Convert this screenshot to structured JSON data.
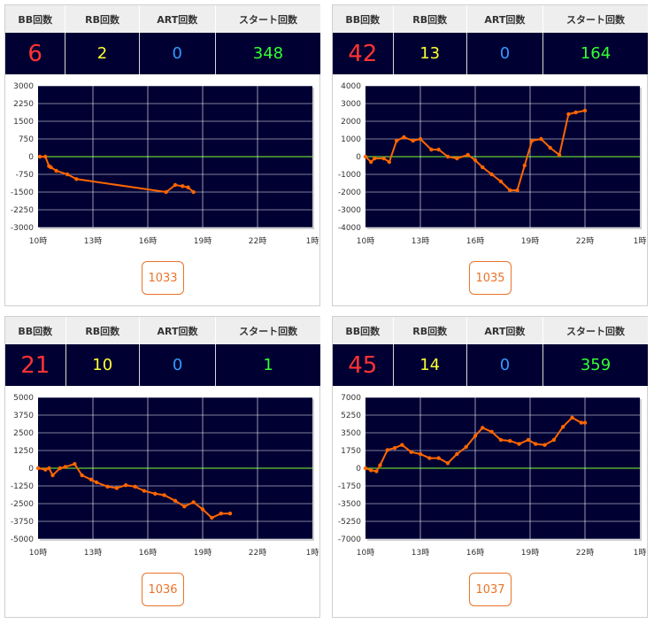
{
  "headers": {
    "bb": "BB回数",
    "rb": "RB回数",
    "art": "ART回数",
    "start": "スタート回数"
  },
  "colors": {
    "bb": "#ff3333",
    "rb": "#ffff33",
    "art": "#3399ff",
    "start": "#33ff33",
    "plot_bg": "#000033",
    "line": "#ff6600",
    "zero_line": "#66cc33",
    "button": "#e8742a"
  },
  "panels": [
    {
      "machine": "1033",
      "bb": "6",
      "rb": "2",
      "art": "0",
      "start": "348",
      "chart_data": {
        "type": "line",
        "x_ticks": [
          "10時",
          "13時",
          "16時",
          "19時",
          "22時",
          "1時"
        ],
        "xlim": [
          10,
          25
        ],
        "ylim": [
          -3000,
          3000
        ],
        "y_ticks": [
          "3000",
          "2250",
          "1500",
          "750",
          "0",
          "-750",
          "-1500",
          "-2250",
          "-3000"
        ],
        "series": [
          {
            "x": [
              10.1,
              10.4,
              10.6,
              10.7,
              11.0,
              11.6,
              12.1,
              17.0,
              17.5,
              17.9,
              18.2,
              18.5
            ],
            "y": [
              0,
              0,
              -400,
              -450,
              -600,
              -750,
              -950,
              -1500,
              -1200,
              -1250,
              -1300,
              -1500
            ]
          }
        ]
      }
    },
    {
      "machine": "1035",
      "bb": "42",
      "rb": "13",
      "art": "0",
      "start": "164",
      "chart_data": {
        "type": "line",
        "x_ticks": [
          "10時",
          "13時",
          "16時",
          "19時",
          "22時",
          "1時"
        ],
        "xlim": [
          10,
          25
        ],
        "ylim": [
          -4000,
          4000
        ],
        "y_ticks": [
          "4000",
          "3000",
          "2000",
          "1000",
          "0",
          "-1000",
          "-2000",
          "-3000",
          "-4000"
        ],
        "series": [
          {
            "x": [
              10.0,
              10.3,
              10.5,
              11.0,
              11.3,
              11.7,
              12.1,
              12.6,
              13.0,
              13.6,
              14.0,
              14.5,
              15.0,
              15.6,
              16.0,
              16.4,
              16.9,
              17.4,
              17.9,
              18.3,
              18.7,
              19.1,
              19.6,
              20.1,
              20.6,
              21.1,
              21.5,
              22.0
            ],
            "y": [
              0,
              -300,
              -100,
              -100,
              -300,
              900,
              1100,
              900,
              1000,
              400,
              400,
              0,
              -100,
              100,
              -200,
              -600,
              -1000,
              -1400,
              -1900,
              -1900,
              -500,
              900,
              1000,
              500,
              100,
              2400,
              2500,
              2600
            ]
          }
        ]
      }
    },
    {
      "machine": "1036",
      "bb": "21",
      "rb": "10",
      "art": "0",
      "start": "1",
      "chart_data": {
        "type": "line",
        "x_ticks": [
          "10時",
          "13時",
          "16時",
          "19時",
          "22時",
          "1時"
        ],
        "xlim": [
          10,
          25
        ],
        "ylim": [
          -5000,
          5000
        ],
        "y_ticks": [
          "5000",
          "3750",
          "2500",
          "1250",
          "0",
          "-1250",
          "-2500",
          "-3750",
          "-5000"
        ],
        "series": [
          {
            "x": [
              10.0,
              10.4,
              10.6,
              10.8,
              11.2,
              11.5,
              12.0,
              12.4,
              12.9,
              13.2,
              13.8,
              14.3,
              14.8,
              15.3,
              15.8,
              16.4,
              16.9,
              17.5,
              18.0,
              18.5,
              19.0,
              19.5,
              20.0,
              20.5
            ],
            "y": [
              0,
              -100,
              0,
              -500,
              0,
              100,
              300,
              -500,
              -800,
              -1000,
              -1300,
              -1400,
              -1200,
              -1300,
              -1600,
              -1800,
              -1900,
              -2300,
              -2700,
              -2400,
              -2900,
              -3500,
              -3200,
              -3200
            ]
          }
        ]
      }
    },
    {
      "machine": "1037",
      "bb": "45",
      "rb": "14",
      "art": "0",
      "start": "359",
      "chart_data": {
        "type": "line",
        "x_ticks": [
          "10時",
          "13時",
          "16時",
          "19時",
          "22時",
          "1時"
        ],
        "xlim": [
          10,
          25
        ],
        "ylim": [
          -7000,
          7000
        ],
        "y_ticks": [
          "7000",
          "5250",
          "3500",
          "1750",
          "0",
          "-1750",
          "-3500",
          "-5250",
          "-7000"
        ],
        "series": [
          {
            "x": [
              10.0,
              10.3,
              10.6,
              10.8,
              11.2,
              11.6,
              12.0,
              12.5,
              13.0,
              13.5,
              14.0,
              14.5,
              15.0,
              15.5,
              16.0,
              16.4,
              16.9,
              17.4,
              17.9,
              18.4,
              18.9,
              19.3,
              19.8,
              20.3,
              20.8,
              21.3,
              21.8,
              22.0
            ],
            "y": [
              0,
              -200,
              -300,
              300,
              1800,
              2000,
              2300,
              1600,
              1400,
              1000,
              1000,
              500,
              1400,
              2100,
              3200,
              4000,
              3600,
              2800,
              2700,
              2400,
              2800,
              2400,
              2300,
              2800,
              4100,
              5000,
              4500,
              4500
            ]
          }
        ]
      }
    }
  ]
}
